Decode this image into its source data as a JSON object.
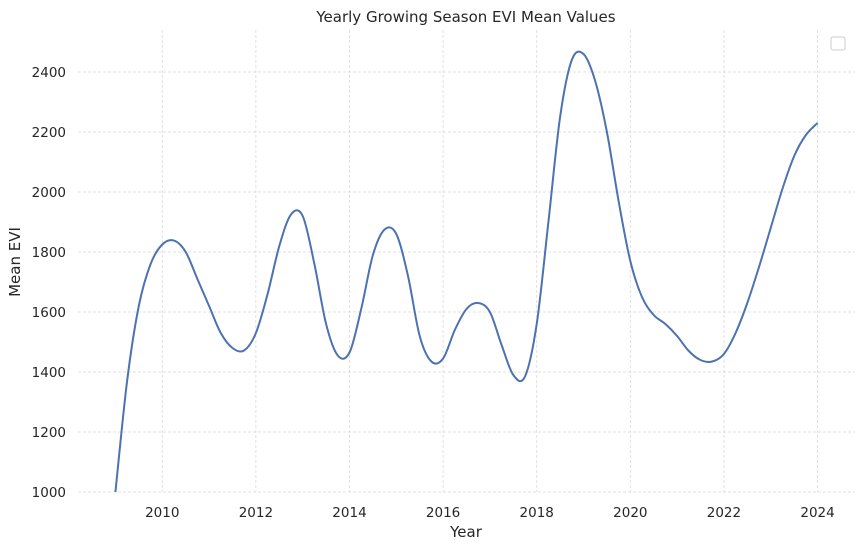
{
  "chart_data": {
    "type": "line",
    "title": "Yearly Growing Season EVI Mean Values",
    "xlabel": "Year",
    "ylabel": "Mean EVI",
    "xlim": [
      2008.2,
      2024.8
    ],
    "ylim": [
      1000,
      2540
    ],
    "xticks": [
      2010,
      2012,
      2014,
      2016,
      2018,
      2020,
      2022,
      2024
    ],
    "yticks": [
      1000,
      1200,
      1400,
      1600,
      1800,
      2000,
      2200,
      2400
    ],
    "grid": true,
    "legend": "top-right, empty",
    "series": [
      {
        "color": "#4c72b0",
        "x": [
          2009.0,
          2009.25,
          2009.5,
          2009.75,
          2010.0,
          2010.25,
          2010.5,
          2010.75,
          2011.0,
          2011.25,
          2011.5,
          2011.75,
          2012.0,
          2012.25,
          2012.5,
          2012.75,
          2013.0,
          2013.25,
          2013.5,
          2013.75,
          2014.0,
          2014.25,
          2014.5,
          2014.75,
          2015.0,
          2015.25,
          2015.5,
          2015.75,
          2016.0,
          2016.25,
          2016.5,
          2016.75,
          2017.0,
          2017.25,
          2017.5,
          2017.75,
          2018.0,
          2018.25,
          2018.5,
          2018.75,
          2019.0,
          2019.25,
          2019.5,
          2019.75,
          2020.0,
          2020.25,
          2020.5,
          2020.75,
          2021.0,
          2021.25,
          2021.5,
          2021.75,
          2022.0,
          2022.25,
          2022.5,
          2022.75,
          2023.0,
          2023.25,
          2023.5,
          2023.75,
          2024.0
        ],
        "y": [
          1000,
          1370,
          1620,
          1760,
          1825,
          1838,
          1800,
          1710,
          1620,
          1530,
          1480,
          1472,
          1530,
          1660,
          1820,
          1925,
          1920,
          1760,
          1560,
          1455,
          1465,
          1610,
          1790,
          1875,
          1860,
          1720,
          1520,
          1435,
          1445,
          1540,
          1610,
          1630,
          1600,
          1490,
          1390,
          1385,
          1560,
          1900,
          2250,
          2440,
          2460,
          2370,
          2200,
          1970,
          1770,
          1650,
          1590,
          1560,
          1520,
          1470,
          1440,
          1435,
          1460,
          1530,
          1630,
          1750,
          1880,
          2010,
          2120,
          2190,
          2230
        ]
      }
    ]
  }
}
